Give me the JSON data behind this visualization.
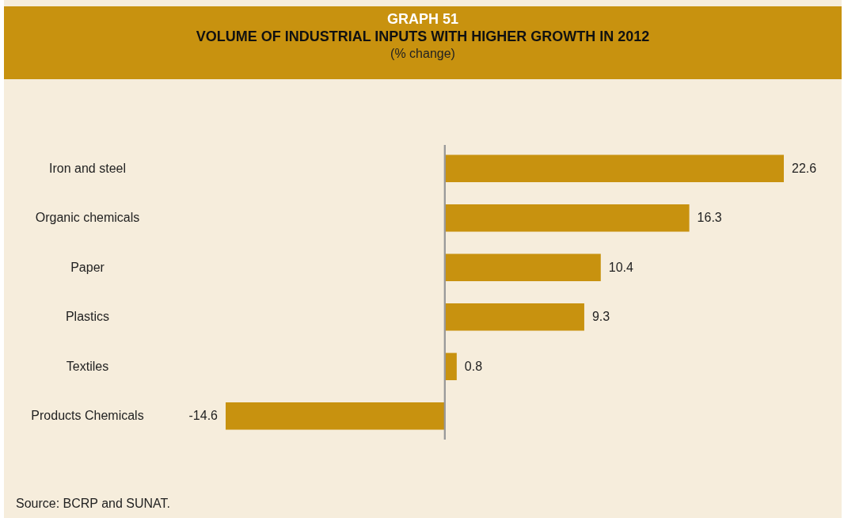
{
  "chart_data": {
    "type": "bar",
    "orientation": "horizontal",
    "title": "VOLUME OF INDUSTRIAL INPUTS WITH HIGHER GROWTH IN 2012",
    "subtitle": "(% change)",
    "annotations": [
      "GRAPH 51",
      "Source: BCRP and SUNAT."
    ],
    "categories": [
      "Iron and steel",
      "Organic chemicals",
      "Paper",
      "Plastics",
      "Textiles",
      "Products Chemicals"
    ],
    "values": [
      22.6,
      16.3,
      10.4,
      9.3,
      0.8,
      -14.6
    ],
    "color": "#c8920f",
    "data_labels": true
  }
}
